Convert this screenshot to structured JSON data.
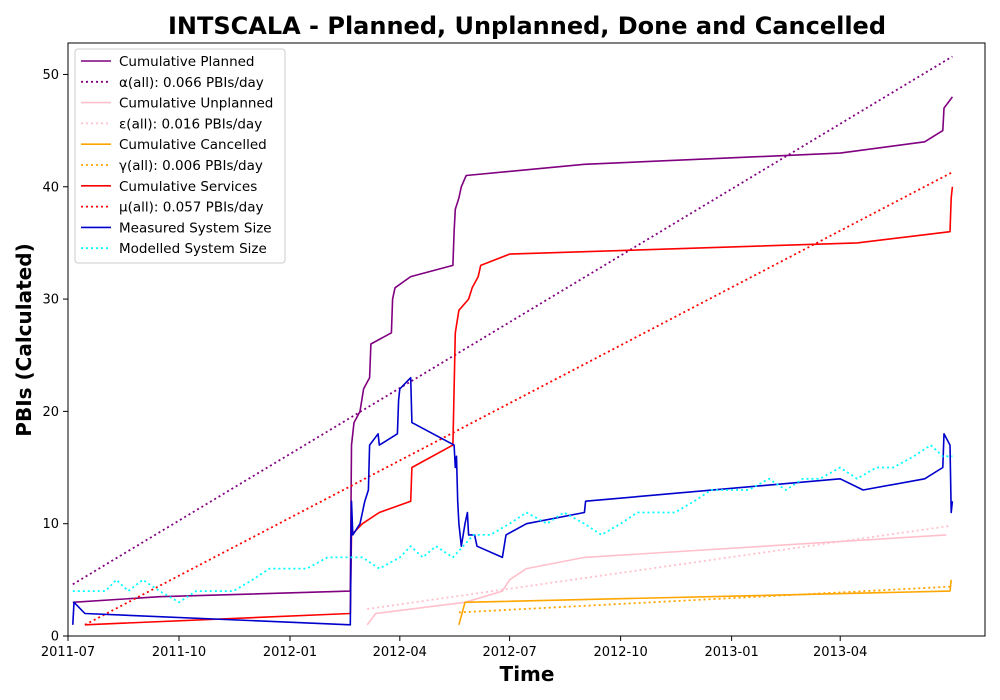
{
  "chart_data": {
    "type": "line",
    "title": "INTSCALA - Planned, Unplanned, Done  and Cancelled",
    "xlabel": "Time",
    "ylabel": "PBIs (Calculated)",
    "xlim": [
      "2011-07-01",
      "2013-07-30"
    ],
    "ylim": [
      0,
      52.8
    ],
    "x_ticks": [
      "2011-07",
      "2011-10",
      "2012-01",
      "2012-04",
      "2012-07",
      "2012-10",
      "2013-01",
      "2013-04"
    ],
    "y_ticks": [
      0,
      10,
      20,
      30,
      40,
      50
    ],
    "grid": false,
    "legend_position": "top-left",
    "series": [
      {
        "name": "Cumulative Planned",
        "color": "#800080",
        "style": "solid",
        "points": [
          [
            "2011-07-05",
            3
          ],
          [
            "2011-09-15",
            3.5
          ],
          [
            "2012-02-20",
            4
          ],
          [
            "2012-02-21",
            17
          ],
          [
            "2012-02-23",
            19
          ],
          [
            "2012-02-28",
            20
          ],
          [
            "2012-03-02",
            22
          ],
          [
            "2012-03-07",
            23
          ],
          [
            "2012-03-08",
            26
          ],
          [
            "2012-03-25",
            27
          ],
          [
            "2012-03-26",
            30
          ],
          [
            "2012-03-28",
            31
          ],
          [
            "2012-04-10",
            32
          ],
          [
            "2012-05-15",
            33
          ],
          [
            "2012-05-16",
            36
          ],
          [
            "2012-05-17",
            38
          ],
          [
            "2012-05-20",
            39
          ],
          [
            "2012-05-22",
            40
          ],
          [
            "2012-05-26",
            41
          ],
          [
            "2012-09-01",
            42
          ],
          [
            "2013-04-01",
            43
          ],
          [
            "2013-06-10",
            44
          ],
          [
            "2013-06-25",
            45
          ],
          [
            "2013-06-26",
            47
          ],
          [
            "2013-07-03",
            48
          ]
        ]
      },
      {
        "name": "α(all): 0.066 PBIs/day",
        "color": "#800080",
        "style": "dotted",
        "points": [
          [
            "2011-07-05",
            4.6
          ],
          [
            "2013-07-03",
            51.6
          ]
        ]
      },
      {
        "name": "Cumulative Unplanned",
        "color": "#ffc0cb",
        "style": "solid",
        "points": [
          [
            "2012-03-05",
            1
          ],
          [
            "2012-03-12",
            2
          ],
          [
            "2012-05-25",
            3
          ],
          [
            "2012-06-25",
            4
          ],
          [
            "2012-07-01",
            5
          ],
          [
            "2012-07-15",
            6
          ],
          [
            "2012-09-01",
            7
          ],
          [
            "2013-06-28",
            9
          ]
        ]
      },
      {
        "name": "ε(all): 0.016 PBIs/day",
        "color": "#ffc0cb",
        "style": "dotted",
        "points": [
          [
            "2012-03-05",
            2.4
          ],
          [
            "2013-07-01",
            9.8
          ]
        ]
      },
      {
        "name": "Cumulative Cancelled",
        "color": "#ffa500",
        "style": "solid",
        "points": [
          [
            "2012-05-20",
            1
          ],
          [
            "2012-05-25",
            3
          ],
          [
            "2013-07-01",
            4
          ],
          [
            "2013-07-02",
            5
          ]
        ]
      },
      {
        "name": "γ(all): 0.006 PBIs/day",
        "color": "#ffa500",
        "style": "dotted",
        "points": [
          [
            "2012-05-20",
            2.1
          ],
          [
            "2013-07-02",
            4.4
          ]
        ]
      },
      {
        "name": "Cumulative Services",
        "color": "#ff0000",
        "style": "solid",
        "points": [
          [
            "2011-07-15",
            1
          ],
          [
            "2012-02-20",
            2
          ],
          [
            "2012-02-21",
            9
          ],
          [
            "2012-03-01",
            10
          ],
          [
            "2012-03-15",
            11
          ],
          [
            "2012-04-10",
            12
          ],
          [
            "2012-04-11",
            15
          ],
          [
            "2012-05-15",
            17
          ],
          [
            "2012-05-16",
            22
          ],
          [
            "2012-05-17",
            27
          ],
          [
            "2012-05-20",
            29
          ],
          [
            "2012-05-28",
            30
          ],
          [
            "2012-05-31",
            31
          ],
          [
            "2012-06-05",
            32
          ],
          [
            "2012-06-07",
            33
          ],
          [
            "2012-07-01",
            34
          ],
          [
            "2013-04-15",
            35
          ],
          [
            "2013-07-01",
            36
          ],
          [
            "2013-07-02",
            39
          ],
          [
            "2013-07-03",
            40
          ]
        ]
      },
      {
        "name": "μ(all): 0.057 PBIs/day",
        "color": "#ff0000",
        "style": "dotted",
        "points": [
          [
            "2011-07-15",
            1
          ],
          [
            "2013-07-03",
            41.3
          ]
        ]
      },
      {
        "name": "Measured System Size",
        "color": "#0000cd",
        "style": "solid",
        "points": [
          [
            "2011-07-05",
            1
          ],
          [
            "2011-07-06",
            3
          ],
          [
            "2011-07-15",
            2
          ],
          [
            "2012-02-20",
            1
          ],
          [
            "2012-02-21",
            12
          ],
          [
            "2012-02-22",
            9
          ],
          [
            "2012-02-28",
            10
          ],
          [
            "2012-03-01",
            11
          ],
          [
            "2012-03-03",
            12
          ],
          [
            "2012-03-06",
            13
          ],
          [
            "2012-03-07",
            17
          ],
          [
            "2012-03-14",
            18
          ],
          [
            "2012-03-15",
            17
          ],
          [
            "2012-03-30",
            18
          ],
          [
            "2012-03-31",
            21
          ],
          [
            "2012-04-01",
            22
          ],
          [
            "2012-04-10",
            23
          ],
          [
            "2012-04-11",
            19
          ],
          [
            "2012-05-16",
            17
          ],
          [
            "2012-05-17",
            15
          ],
          [
            "2012-05-18",
            16
          ],
          [
            "2012-05-19",
            12
          ],
          [
            "2012-05-20",
            10
          ],
          [
            "2012-05-22",
            8
          ],
          [
            "2012-05-25",
            10
          ],
          [
            "2012-05-27",
            11
          ],
          [
            "2012-05-28",
            9
          ],
          [
            "2012-06-02",
            9
          ],
          [
            "2012-06-04",
            8
          ],
          [
            "2012-06-25",
            7
          ],
          [
            "2012-06-28",
            9
          ],
          [
            "2012-07-15",
            10
          ],
          [
            "2012-09-01",
            11
          ],
          [
            "2012-09-02",
            12
          ],
          [
            "2013-04-01",
            14
          ],
          [
            "2013-04-20",
            13
          ],
          [
            "2013-06-10",
            14
          ],
          [
            "2013-06-25",
            15
          ],
          [
            "2013-06-26",
            18
          ],
          [
            "2013-07-01",
            17
          ],
          [
            "2013-07-02",
            11
          ],
          [
            "2013-07-03",
            12
          ]
        ]
      },
      {
        "name": "Modelled System Size",
        "color": "#00ffff",
        "style": "dotted",
        "points": [
          [
            "2011-07-05",
            4
          ],
          [
            "2011-08-01",
            4
          ],
          [
            "2011-08-10",
            5
          ],
          [
            "2011-08-20",
            4
          ],
          [
            "2011-09-01",
            5
          ],
          [
            "2011-09-15",
            4
          ],
          [
            "2011-10-01",
            3
          ],
          [
            "2011-10-15",
            4
          ],
          [
            "2011-11-15",
            4
          ],
          [
            "2011-12-01",
            5
          ],
          [
            "2011-12-15",
            6
          ],
          [
            "2012-01-15",
            6
          ],
          [
            "2012-02-01",
            7
          ],
          [
            "2012-02-15",
            7
          ],
          [
            "2012-03-01",
            7
          ],
          [
            "2012-03-15",
            6
          ],
          [
            "2012-04-01",
            7
          ],
          [
            "2012-04-10",
            8
          ],
          [
            "2012-04-20",
            7
          ],
          [
            "2012-05-01",
            8
          ],
          [
            "2012-05-15",
            7
          ],
          [
            "2012-06-01",
            9
          ],
          [
            "2012-06-15",
            9
          ],
          [
            "2012-07-01",
            10
          ],
          [
            "2012-07-15",
            11
          ],
          [
            "2012-08-01",
            10
          ],
          [
            "2012-08-15",
            11
          ],
          [
            "2012-09-01",
            10
          ],
          [
            "2012-09-15",
            9
          ],
          [
            "2012-10-01",
            10
          ],
          [
            "2012-10-15",
            11
          ],
          [
            "2012-11-15",
            11
          ],
          [
            "2012-12-01",
            12
          ],
          [
            "2012-12-15",
            13
          ],
          [
            "2013-01-15",
            13
          ],
          [
            "2013-02-01",
            14
          ],
          [
            "2013-02-15",
            13
          ],
          [
            "2013-03-01",
            14
          ],
          [
            "2013-03-15",
            14
          ],
          [
            "2013-04-01",
            15
          ],
          [
            "2013-04-15",
            14
          ],
          [
            "2013-05-01",
            15
          ],
          [
            "2013-05-15",
            15
          ],
          [
            "2013-06-01",
            16
          ],
          [
            "2013-06-15",
            17
          ],
          [
            "2013-06-25",
            16
          ],
          [
            "2013-07-03",
            16
          ]
        ]
      }
    ]
  }
}
